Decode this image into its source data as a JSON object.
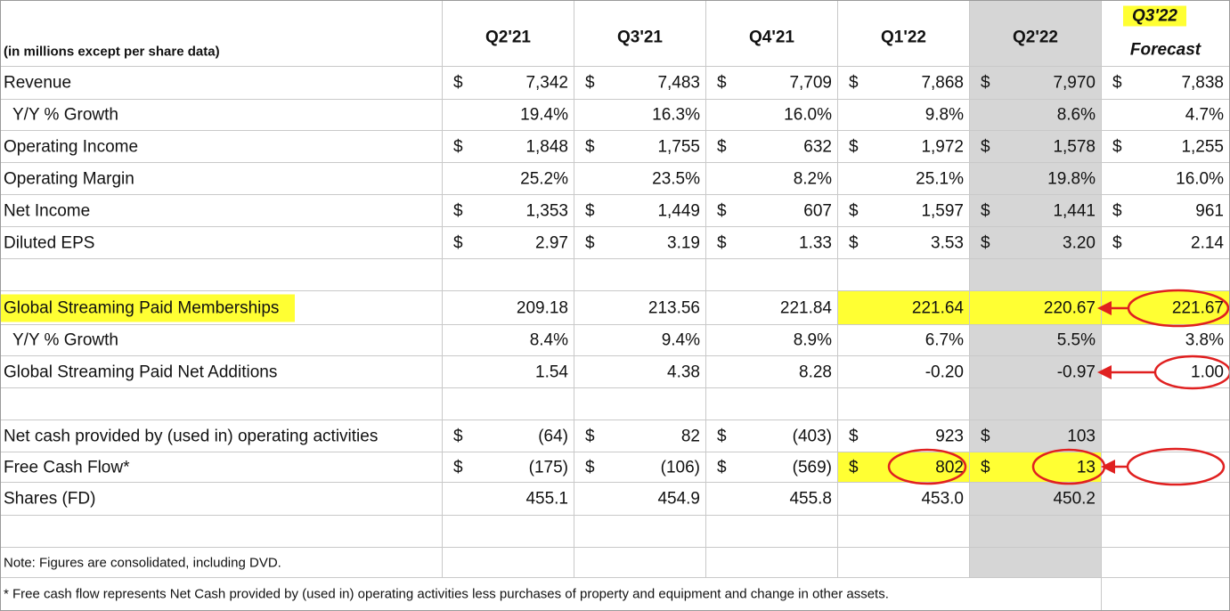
{
  "header": {
    "units_note": "(in millions except per share data)",
    "periods": [
      "Q2'21",
      "Q3'21",
      "Q4'21",
      "Q1'22",
      "Q2'22",
      "Q3'22"
    ],
    "forecast_label": "Forecast"
  },
  "currency_symbol": "$",
  "rows": [
    {
      "label": "Revenue",
      "values": [
        "7,342",
        "7,483",
        "7,709",
        "7,868",
        "7,970",
        "7,838"
      ]
    },
    {
      "label": "Y/Y % Growth",
      "values": [
        "19.4%",
        "16.3%",
        "16.0%",
        "9.8%",
        "8.6%",
        "4.7%"
      ]
    },
    {
      "label": "Operating Income",
      "values": [
        "1,848",
        "1,755",
        "632",
        "1,972",
        "1,578",
        "1,255"
      ]
    },
    {
      "label": "Operating Margin",
      "values": [
        "25.2%",
        "23.5%",
        "8.2%",
        "25.1%",
        "19.8%",
        "16.0%"
      ]
    },
    {
      "label": "Net Income",
      "values": [
        "1,353",
        "1,449",
        "607",
        "1,597",
        "1,441",
        "961"
      ]
    },
    {
      "label": "Diluted EPS",
      "values": [
        "2.97",
        "3.19",
        "1.33",
        "3.53",
        "3.20",
        "2.14"
      ]
    },
    {
      "label": "Global Streaming Paid Memberships",
      "values": [
        "209.18",
        "213.56",
        "221.84",
        "221.64",
        "220.67",
        "221.67"
      ]
    },
    {
      "label": "Y/Y % Growth",
      "values": [
        "8.4%",
        "9.4%",
        "8.9%",
        "6.7%",
        "5.5%",
        "3.8%"
      ]
    },
    {
      "label": "Global Streaming Paid Net Additions",
      "values": [
        "1.54",
        "4.38",
        "8.28",
        "-0.20",
        "-0.97",
        "1.00"
      ]
    },
    {
      "label": "Net cash provided by (used in) operating activities",
      "values": [
        "(64)",
        "82",
        "(403)",
        "923",
        "103",
        ""
      ]
    },
    {
      "label": "Free Cash Flow*",
      "values": [
        "(175)",
        "(106)",
        "(569)",
        "802",
        "13",
        ""
      ]
    },
    {
      "label": "Shares (FD)",
      "values": [
        "455.1",
        "454.9",
        "455.8",
        "453.0",
        "450.2",
        ""
      ]
    }
  ],
  "notes": {
    "consolidated": "Note: Figures are consolidated, including DVD.",
    "fcf_definition": "* Free cash flow represents Net Cash provided by (used in) operating activities less purchases of property and equipment and change in other assets."
  },
  "colors": {
    "highlight": "#ffff33",
    "shaded_column": "#d6d6d6",
    "annotation": "#e02020",
    "gridline": "#c9c9c9"
  }
}
